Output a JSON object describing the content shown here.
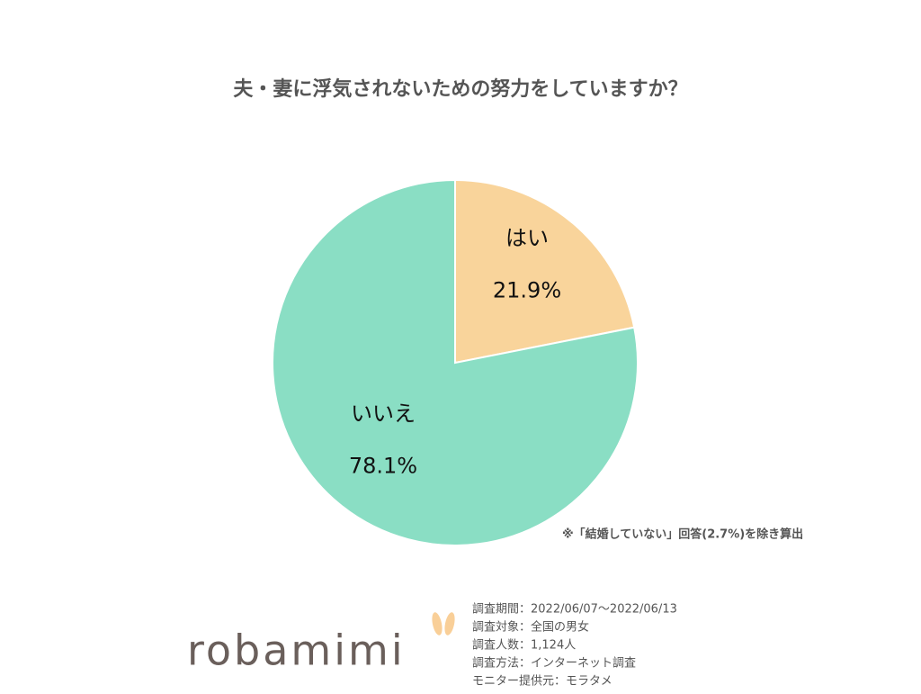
{
  "chart_data": {
    "type": "pie",
    "title": "夫・妻に浮気されないための努力をしていますか？",
    "categories": [
      "はい",
      "いいえ"
    ],
    "values": [
      21.9,
      78.1
    ],
    "value_labels": [
      "21.9%",
      "78.1%"
    ],
    "colors": [
      "#f9d49b",
      "#8adec4"
    ],
    "footnote": "※「結婚していない」回答(2.7%)を除き算出"
  },
  "survey_info": [
    "調査期間：2022/06/07～2022/06/13",
    "調査対象：全国の男女",
    "調査人数：1,124人",
    "調査方法：インターネット調査",
    "モニター提供元：モラタメ"
  ],
  "logo": "robamimi"
}
